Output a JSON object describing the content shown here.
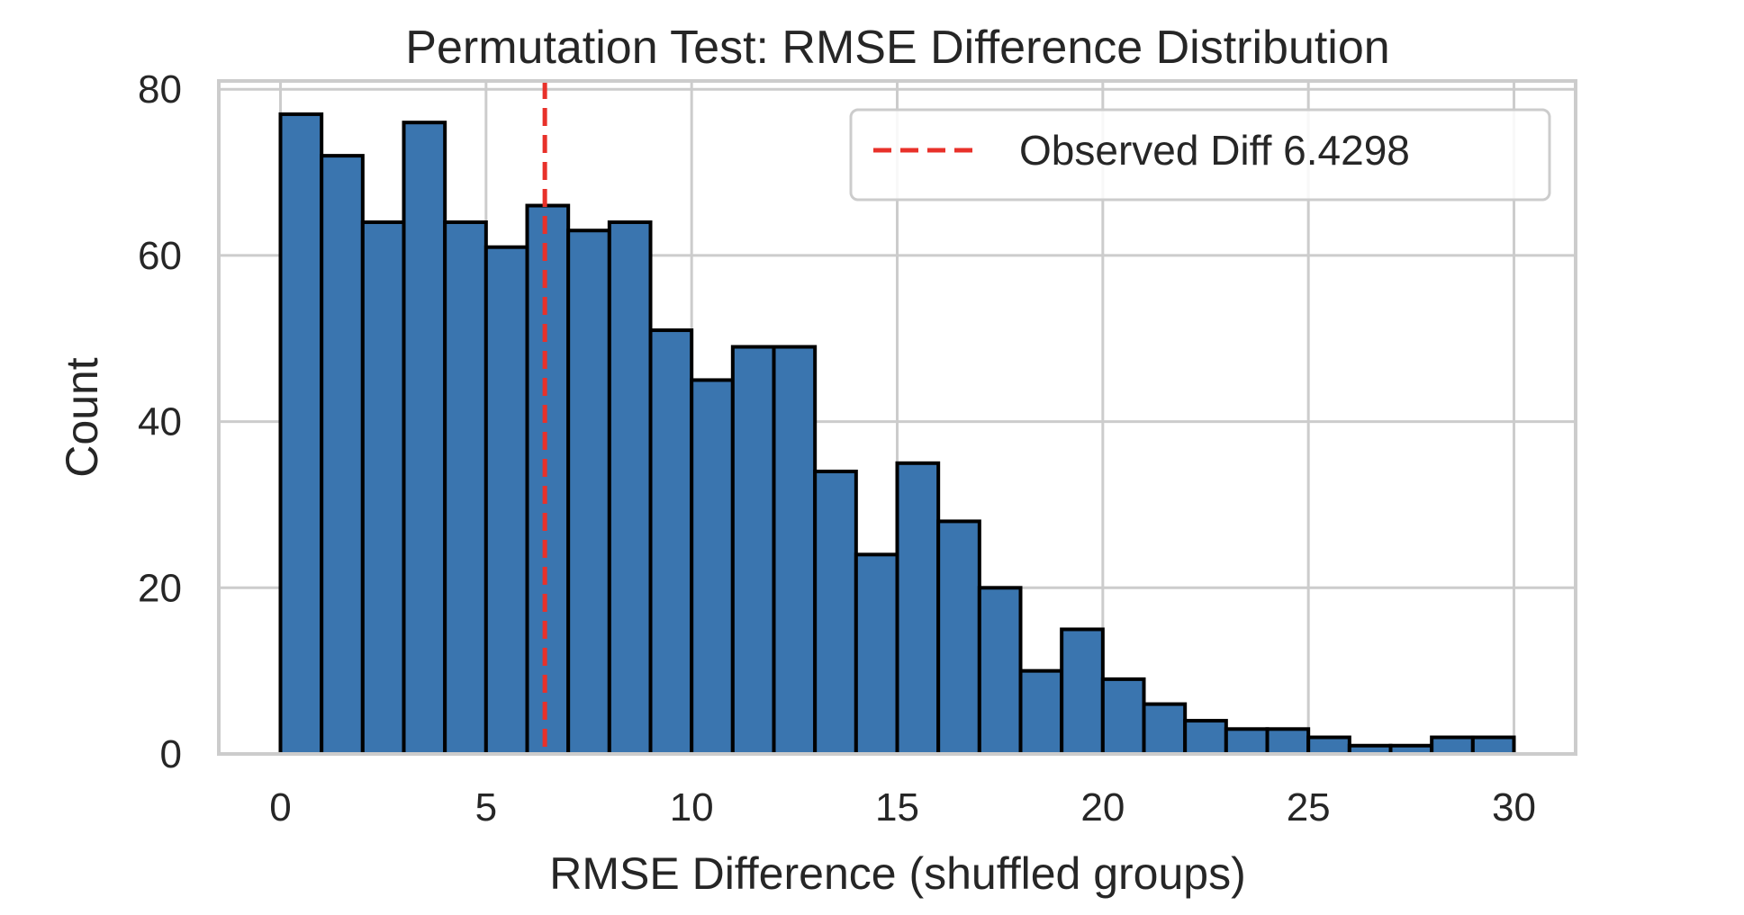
{
  "chart_data": {
    "type": "bar",
    "title": "Permutation Test: RMSE Difference Distribution",
    "xlabel": "RMSE Difference (shuffled groups)",
    "ylabel": "Count",
    "xlim": [
      -1.5,
      31.5
    ],
    "ylim": [
      0,
      81
    ],
    "xticks": [
      0,
      5,
      10,
      15,
      20,
      25,
      30
    ],
    "yticks": [
      0,
      20,
      40,
      60,
      80
    ],
    "grid": true,
    "bin_width": 1,
    "bin_edges": [
      0,
      1,
      2,
      3,
      4,
      5,
      6,
      7,
      8,
      9,
      10,
      11,
      12,
      13,
      14,
      15,
      16,
      17,
      18,
      19,
      20,
      21,
      22,
      23,
      24,
      25,
      26,
      27,
      28,
      29,
      30
    ],
    "values": [
      77,
      72,
      64,
      76,
      64,
      61,
      66,
      63,
      64,
      51,
      45,
      49,
      49,
      34,
      24,
      35,
      28,
      20,
      10,
      15,
      9,
      6,
      4,
      3,
      3,
      2,
      1,
      1,
      2,
      2
    ],
    "bar_color": "#3a75af",
    "bar_edge_color": "#000000",
    "reference_line": {
      "x": 6.4298,
      "label": "Observed Diff 6.4298",
      "color": "#e8312a",
      "style": "dashed"
    },
    "legend": {
      "position": "top-right"
    }
  }
}
